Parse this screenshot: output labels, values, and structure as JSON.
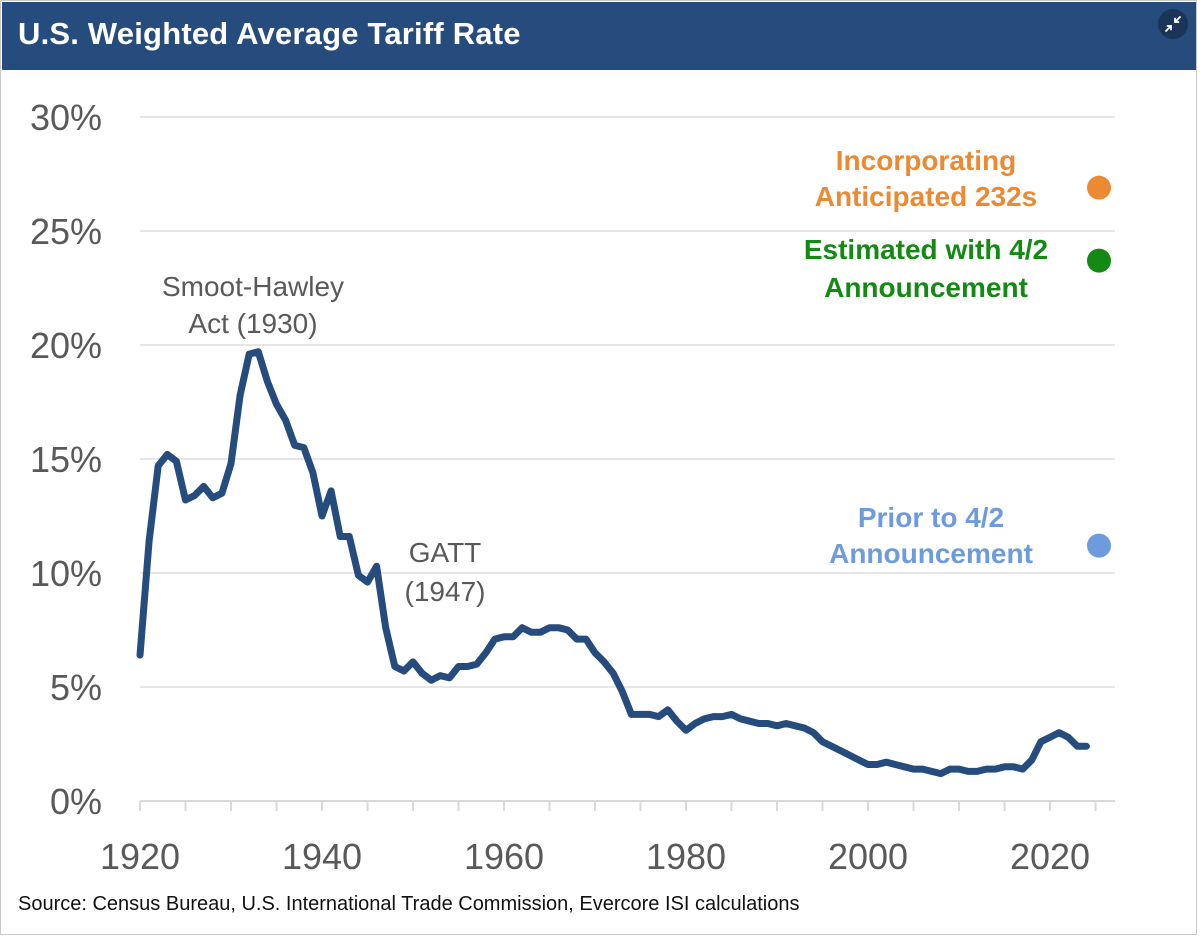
{
  "header": {
    "title": "U.S. Weighted Average Tariff Rate",
    "collapse_icon": "collapse-arrows-icon"
  },
  "source": "Source: Census Bureau, U.S. International Trade Commission, Evercore ISI calculations",
  "colors": {
    "header_bg": "#264b7d",
    "line": "#264b7d",
    "orange": "#ec8a33",
    "green": "#148a14",
    "lightblue": "#6e9bdc",
    "grid": "#e6e6e6"
  },
  "chart_data": {
    "type": "line",
    "title": "U.S. Weighted Average Tariff Rate",
    "xlabel": "",
    "ylabel": "",
    "xlim": [
      1920,
      2026
    ],
    "ylim": [
      0,
      30
    ],
    "xticks": [
      1920,
      1940,
      1960,
      1980,
      2000,
      2020
    ],
    "xtick_labels": [
      "1920",
      "1940",
      "1960",
      "1980",
      "2000",
      "2020"
    ],
    "yticks": [
      0,
      5,
      10,
      15,
      20,
      25,
      30
    ],
    "ytick_labels": [
      "0%",
      "5%",
      "10%",
      "15%",
      "20%",
      "25%",
      "30%"
    ],
    "grid": true,
    "series": [
      {
        "name": "Weighted average tariff rate",
        "x": [
          1920,
          1921,
          1922,
          1923,
          1924,
          1925,
          1926,
          1927,
          1928,
          1929,
          1930,
          1931,
          1932,
          1933,
          1934,
          1935,
          1936,
          1937,
          1938,
          1939,
          1940,
          1941,
          1942,
          1943,
          1944,
          1945,
          1946,
          1947,
          1948,
          1949,
          1950,
          1951,
          1952,
          1953,
          1954,
          1955,
          1956,
          1957,
          1958,
          1959,
          1960,
          1961,
          1962,
          1963,
          1964,
          1965,
          1966,
          1967,
          1968,
          1969,
          1970,
          1971,
          1972,
          1973,
          1974,
          1975,
          1976,
          1977,
          1978,
          1979,
          1980,
          1981,
          1982,
          1983,
          1984,
          1985,
          1986,
          1987,
          1988,
          1989,
          1990,
          1991,
          1992,
          1993,
          1994,
          1995,
          1996,
          1997,
          1998,
          1999,
          2000,
          2001,
          2002,
          2003,
          2004,
          2005,
          2006,
          2007,
          2008,
          2009,
          2010,
          2011,
          2012,
          2013,
          2014,
          2015,
          2016,
          2017,
          2018,
          2019,
          2020,
          2021,
          2022,
          2023,
          2024
        ],
        "y": [
          6.4,
          11.4,
          14.7,
          15.2,
          14.9,
          13.2,
          13.4,
          13.8,
          13.3,
          13.5,
          14.8,
          17.8,
          19.6,
          19.7,
          18.4,
          17.4,
          16.7,
          15.6,
          15.5,
          14.4,
          12.5,
          13.6,
          11.6,
          11.6,
          9.9,
          9.6,
          10.3,
          7.6,
          5.9,
          5.7,
          6.1,
          5.6,
          5.3,
          5.5,
          5.4,
          5.9,
          5.9,
          6.0,
          6.5,
          7.1,
          7.2,
          7.2,
          7.6,
          7.4,
          7.4,
          7.6,
          7.6,
          7.5,
          7.1,
          7.1,
          6.5,
          6.1,
          5.6,
          4.8,
          3.8,
          3.8,
          3.8,
          3.7,
          4.0,
          3.5,
          3.1,
          3.4,
          3.6,
          3.7,
          3.7,
          3.8,
          3.6,
          3.5,
          3.4,
          3.4,
          3.3,
          3.4,
          3.3,
          3.2,
          3.0,
          2.6,
          2.4,
          2.2,
          2.0,
          1.8,
          1.6,
          1.6,
          1.7,
          1.6,
          1.5,
          1.4,
          1.4,
          1.3,
          1.2,
          1.4,
          1.4,
          1.3,
          1.3,
          1.4,
          1.4,
          1.5,
          1.5,
          1.4,
          1.8,
          2.6,
          2.8,
          3.0,
          2.8,
          2.4,
          2.4
        ]
      }
    ],
    "points": [
      {
        "label": "Incorporating Anticipated 232s",
        "x": 2025,
        "y": 26.9,
        "color": "#ec8a33"
      },
      {
        "label": "Estimated with 4/2 Announcement",
        "x": 2025,
        "y": 23.7,
        "color": "#148a14"
      },
      {
        "label": "Prior to 4/2 Announcement",
        "x": 2025,
        "y": 11.2,
        "color": "#6e9bdc"
      }
    ],
    "annotations": [
      {
        "lines": [
          "Smoot-Hawley",
          "Act (1930)"
        ]
      },
      {
        "lines": [
          "GATT",
          "(1947)"
        ]
      }
    ],
    "point_label_lines": [
      [
        "Incorporating",
        "Anticipated 232s"
      ],
      [
        "Estimated with 4/2",
        "Announcement"
      ],
      [
        "Prior to 4/2",
        "Announcement"
      ]
    ]
  }
}
